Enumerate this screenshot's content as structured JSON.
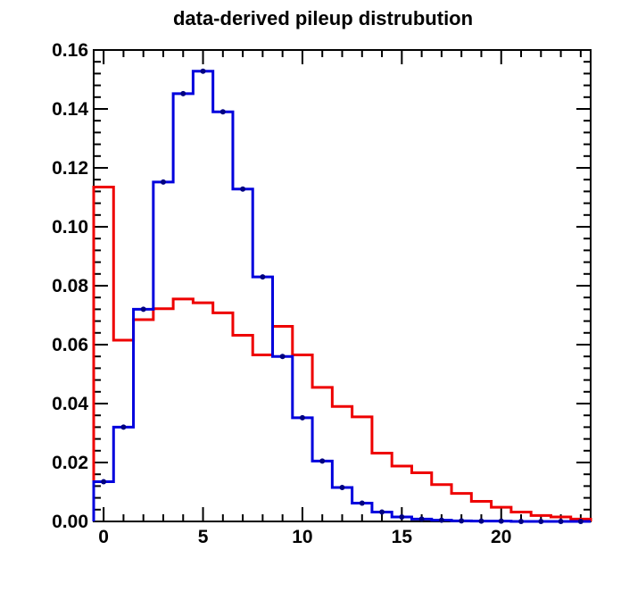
{
  "chart_data": {
    "type": "step",
    "title": "data-derived pileup distrubution",
    "xlabel": "",
    "ylabel": "",
    "xlim": [
      -0.5,
      24.5
    ],
    "ylim": [
      0,
      0.16
    ],
    "x_ticks": [
      0,
      5,
      10,
      15,
      20
    ],
    "y_ticks": [
      0.0,
      0.02,
      0.04,
      0.06,
      0.08,
      0.1,
      0.12,
      0.14,
      0.16
    ],
    "y_tick_labels": [
      "0.00",
      "0.02",
      "0.04",
      "0.06",
      "0.08",
      "0.10",
      "0.12",
      "0.14",
      "0.16"
    ],
    "grid": false,
    "legend": "none",
    "bin_edges": [
      -0.5,
      0.5,
      1.5,
      2.5,
      3.5,
      4.5,
      5.5,
      6.5,
      7.5,
      8.5,
      9.5,
      10.5,
      11.5,
      12.5,
      13.5,
      14.5,
      15.5,
      16.5,
      17.5,
      18.5,
      19.5,
      20.5,
      21.5,
      22.5,
      23.5,
      24.5
    ],
    "series": [
      {
        "color": "#0000dd",
        "markers": true,
        "values": [
          0.0135,
          0.032,
          0.072,
          0.1152,
          0.1452,
          0.1528,
          0.139,
          0.1128,
          0.083,
          0.056,
          0.0352,
          0.0205,
          0.0115,
          0.0062,
          0.0032,
          0.0015,
          0.0008,
          0.0004,
          0.0002,
          0.0001,
          0.0001,
          0.0,
          0.0,
          0.0,
          0.0
        ]
      },
      {
        "color": "#ee0000",
        "markers": false,
        "values": [
          0.1135,
          0.0615,
          0.0685,
          0.0722,
          0.0755,
          0.0742,
          0.0708,
          0.0632,
          0.0565,
          0.0662,
          0.0565,
          0.0455,
          0.039,
          0.0355,
          0.0232,
          0.0188,
          0.0165,
          0.0125,
          0.0095,
          0.0068,
          0.0048,
          0.0032,
          0.002,
          0.0015,
          0.0008
        ]
      }
    ]
  }
}
